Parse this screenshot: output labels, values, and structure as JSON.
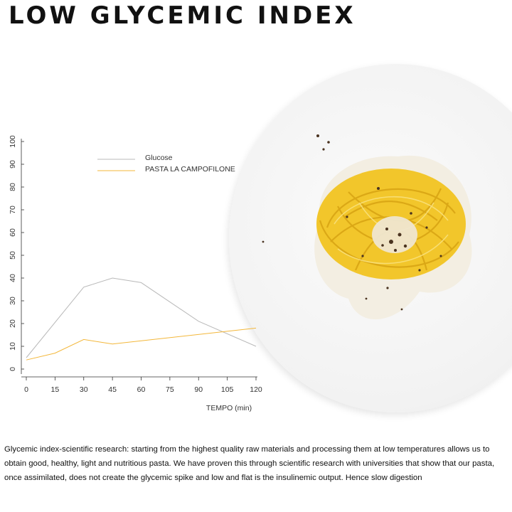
{
  "header": {
    "title": "LOW GLYCEMIC INDEX"
  },
  "image": {
    "subject": "plate-of-pasta"
  },
  "colors": {
    "glucose": "#b9b9b9",
    "pasta": "#f3b73a",
    "axis": "#333333",
    "text": "#111111"
  },
  "chart_data": {
    "type": "line",
    "x": [
      0,
      15,
      30,
      45,
      60,
      75,
      90,
      105,
      120
    ],
    "xticks": [
      "0",
      "15",
      "30",
      "45",
      "60",
      "75",
      "90",
      "105",
      "120"
    ],
    "yticks": [
      "0",
      "10",
      "20",
      "30",
      "40",
      "50",
      "60",
      "70",
      "80",
      "90",
      "100"
    ],
    "xlim": [
      0,
      120
    ],
    "ylim": [
      0,
      100
    ],
    "xlabel": "TEMPO (min)",
    "ylabel": "",
    "grid": false,
    "legend_position": "top-left",
    "series": [
      {
        "name": "Glucose",
        "x": [
          0,
          30,
          45,
          60,
          90,
          120
        ],
        "values": [
          5,
          36,
          40,
          38,
          21,
          10
        ]
      },
      {
        "name": "PASTA LA CAMPOFILONE",
        "x": [
          0,
          15,
          30,
          45,
          120
        ],
        "values": [
          4,
          7,
          13,
          11,
          18
        ]
      }
    ]
  },
  "description": {
    "text": "Glycemic index-scientific research: starting from the highest quality raw materials and processing them at low temperatures allows us to obtain good, healthy, light and nutritious pasta. We have proven this through scientific research with universities that show that our pasta, once assimilated, does not create the glycemic spike and low and flat is the insulinemic output. Hence slow digestion"
  }
}
